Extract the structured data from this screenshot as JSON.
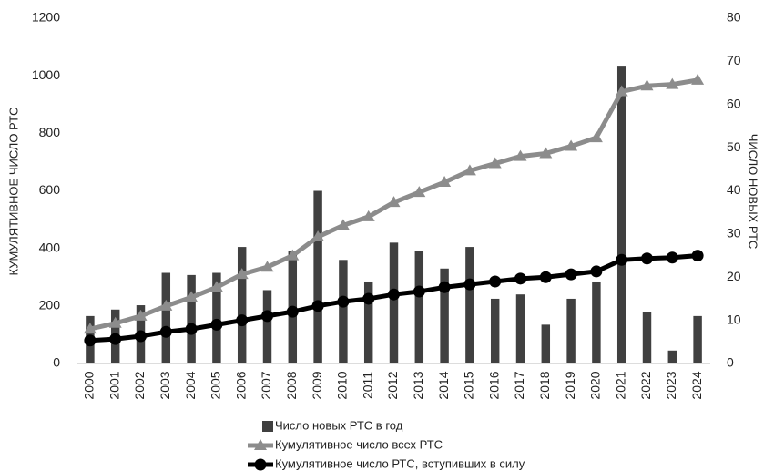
{
  "chart_data": {
    "type": "bar-line",
    "categories": [
      "2000",
      "2001",
      "2002",
      "2003",
      "2004",
      "2005",
      "2006",
      "2007",
      "2008",
      "2009",
      "2010",
      "2011",
      "2012",
      "2013",
      "2014",
      "2015",
      "2016",
      "2017",
      "2018",
      "2019",
      "2020",
      "2021",
      "2022",
      "2023",
      "2024"
    ],
    "y_label": "КУМУЛЯТИВНОЕ ЧИСЛО РТС",
    "y2_label": "ЧИСЛО НОВЫХ РТС",
    "ylim": [
      0,
      1200
    ],
    "yticks": [
      0,
      200,
      400,
      600,
      800,
      1000,
      1200
    ],
    "y2lim": [
      0,
      80
    ],
    "y2ticks": [
      0,
      10,
      20,
      30,
      40,
      50,
      60,
      70,
      80
    ],
    "grid": false,
    "legend": "bottom",
    "series": [
      {
        "name": "Число новых РТС в год",
        "type": "bar",
        "axis": "y2",
        "color": "#404040",
        "values": [
          11,
          12.5,
          13.5,
          21,
          20.5,
          21,
          27,
          17,
          26,
          40,
          24,
          19,
          28,
          26,
          22,
          27,
          15,
          16,
          9,
          15,
          19,
          69,
          12,
          3,
          11
        ]
      },
      {
        "name": "Кумулятивное число всех РТС",
        "type": "line",
        "marker": "triangle",
        "color": "#8c8c8c",
        "values": [
          120,
          140,
          165,
          200,
          230,
          265,
          310,
          335,
          375,
          440,
          480,
          510,
          560,
          595,
          630,
          670,
          695,
          720,
          730,
          755,
          785,
          945,
          965,
          970,
          985
        ]
      },
      {
        "name": "Кумулятивное число РТС, вступивших в силу",
        "type": "line",
        "marker": "circle",
        "color": "#000000",
        "values": [
          80,
          85,
          95,
          110,
          120,
          135,
          150,
          165,
          180,
          200,
          215,
          225,
          240,
          250,
          265,
          275,
          285,
          295,
          300,
          310,
          320,
          360,
          365,
          368,
          375
        ]
      }
    ]
  }
}
